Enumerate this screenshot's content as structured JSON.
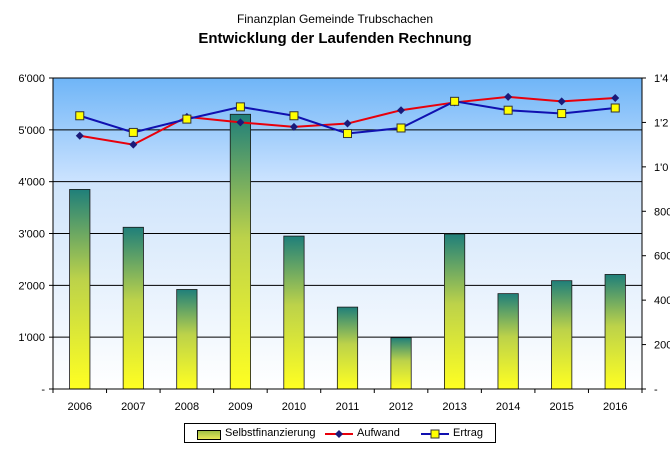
{
  "title": "Finanzplan Gemeinde Trubschachen",
  "subtitle": "Entwicklung der Laufenden Rechnung",
  "chart_data": {
    "type": "bar",
    "categories": [
      "2006",
      "2007",
      "2008",
      "2009",
      "2010",
      "2011",
      "2012",
      "2013",
      "2014",
      "2015",
      "2016"
    ],
    "series": [
      {
        "name": "Selbstfinanzierung",
        "type": "bar",
        "axis": "left",
        "values": [
          3850,
          3120,
          1920,
          5300,
          2950,
          1580,
          990,
          2990,
          1840,
          2090,
          2210
        ]
      },
      {
        "name": "Aufwand",
        "type": "line",
        "axis": "right",
        "color": "#e8000b",
        "values": [
          11400,
          11000,
          12250,
          12000,
          11800,
          11950,
          12550,
          12900,
          13150,
          12950,
          13100
        ]
      },
      {
        "name": "Ertrag",
        "type": "line",
        "axis": "right",
        "color": "#1010b0",
        "values": [
          12300,
          11550,
          12150,
          12700,
          12300,
          11500,
          11750,
          12950,
          12550,
          12400,
          12650
        ]
      }
    ],
    "ylim_left": [
      0,
      6000
    ],
    "ylim_right": [
      0,
      14000
    ],
    "yticks_left": [
      "-",
      "1'000",
      "2'000",
      "3'000",
      "4'000",
      "5'000",
      "6'000"
    ],
    "yticks_right": [
      "-",
      "200",
      "400",
      "600",
      "800",
      "1'0",
      "1'2",
      "1'4"
    ],
    "grid": true,
    "legend": "bottom"
  }
}
